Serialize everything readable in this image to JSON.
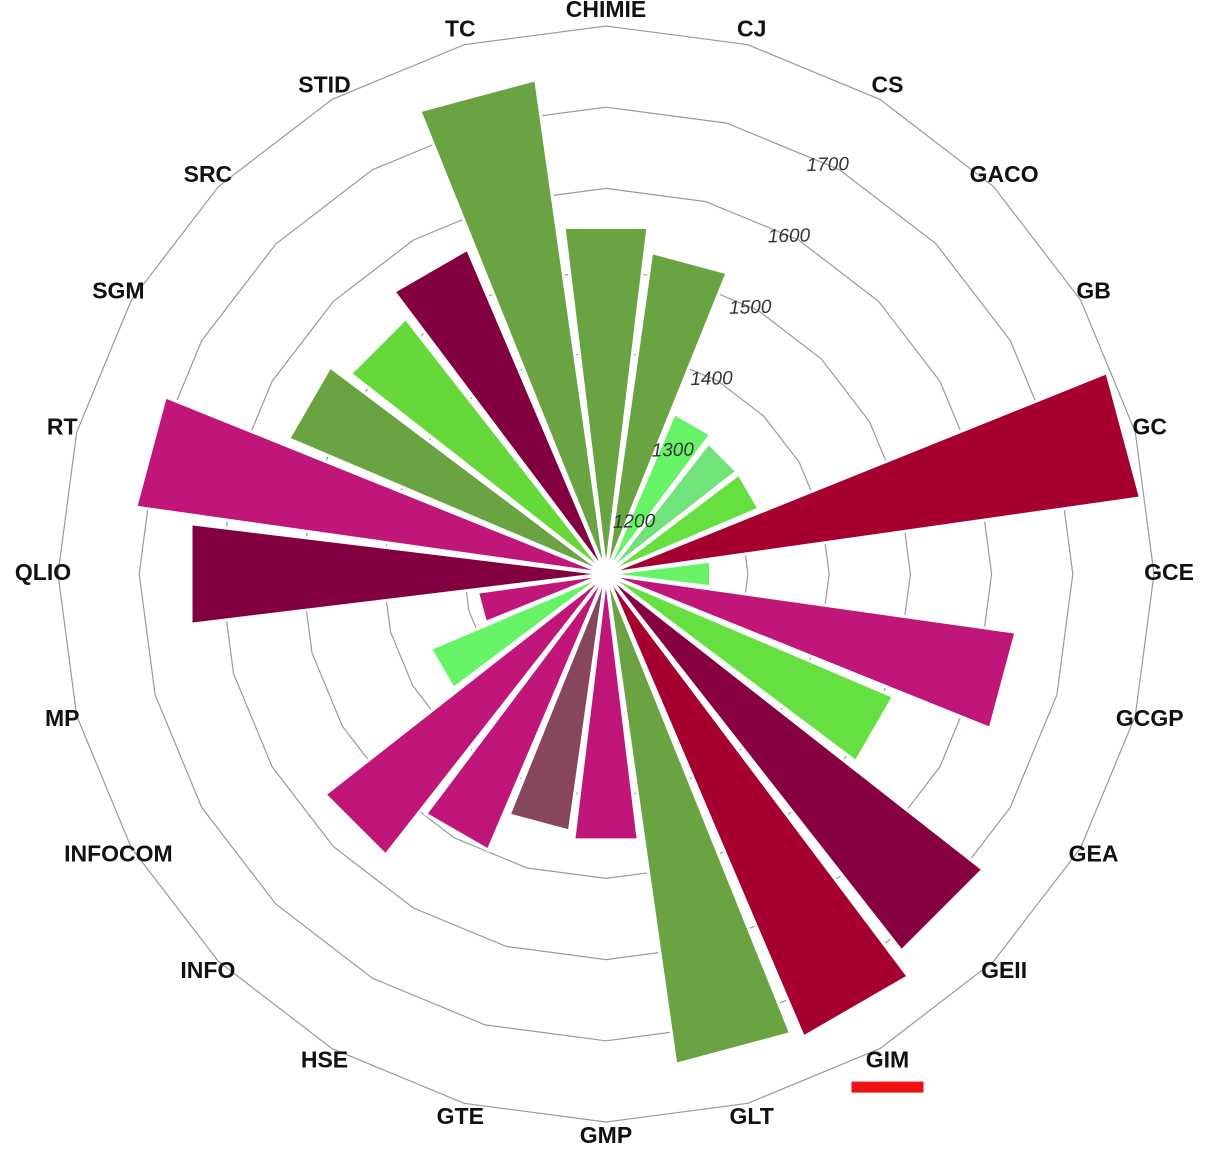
{
  "chart_data": {
    "type": "polar-bar",
    "title": "",
    "categories": [
      "CHIMIE",
      "CJ",
      "CS",
      "GACO",
      "GB",
      "GC",
      "GCE",
      "GCGP",
      "GEA",
      "GEII",
      "GIM",
      "GLT",
      "GMP",
      "GTE",
      "HSE",
      "INFO",
      "INFOCOM",
      "MP",
      "QLIO",
      "RT",
      "SGM",
      "SRC",
      "STID",
      "TC"
    ],
    "values": [
      1555,
      1525,
      1340,
      1330,
      1330,
      1790,
      1255,
      1635,
      1510,
      1715,
      1745,
      1735,
      1455,
      1445,
      1495,
      1565,
      1360,
      1285,
      1640,
      1710,
      1550,
      1525,
      1560,
      1740
    ],
    "colors": [
      "#6aa342",
      "#6aa342",
      "#66f466",
      "#72e27a",
      "#66e040",
      "#a60030",
      "#66f466",
      "#c0167a",
      "#66e040",
      "#870040",
      "#a60030",
      "#6aa342",
      "#c0167a",
      "#86475e",
      "#c0167a",
      "#c0167a",
      "#66f466",
      "#c0167a",
      "#820040",
      "#c0167a",
      "#6aa342",
      "#66d83a",
      "#820040",
      "#6aa342"
    ],
    "radial_axis": {
      "ticks": [
        1200,
        1300,
        1400,
        1500,
        1600,
        1700
      ],
      "tick_labels": [
        "1200",
        "1300",
        "1400",
        "1500",
        "1600",
        "1700"
      ],
      "min": 1140,
      "max": 1800
    },
    "grid": true,
    "highlighted_category": "GIM",
    "highlight_color": "#ee1111"
  }
}
